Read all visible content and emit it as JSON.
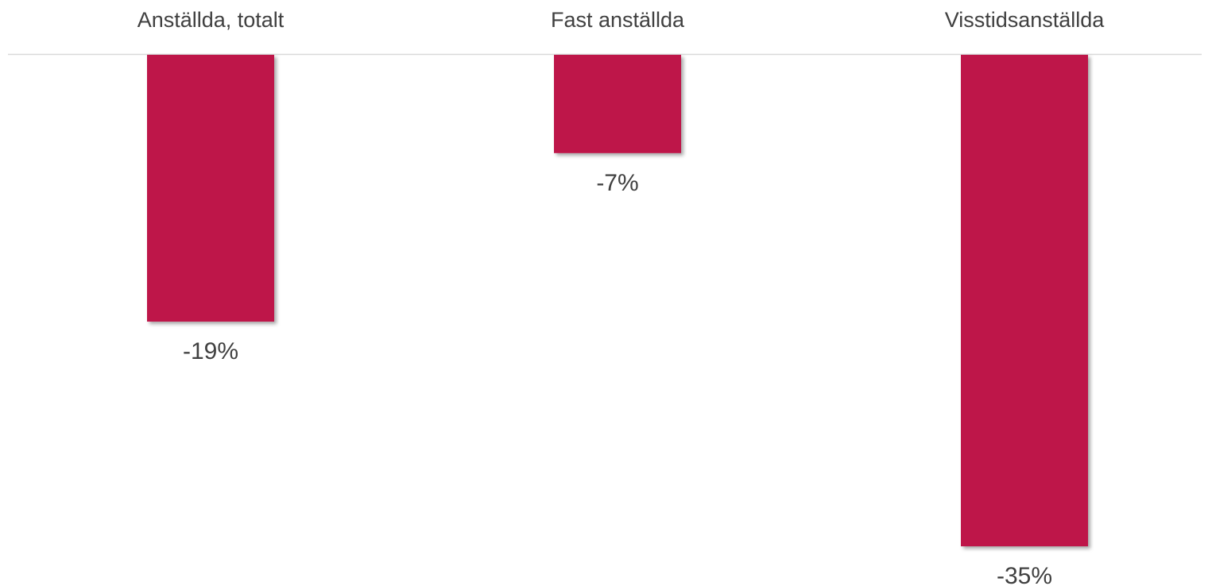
{
  "chart_data": {
    "type": "bar",
    "title": "",
    "xlabel": "",
    "ylabel": "",
    "categories": [
      "Anställda, totalt",
      "Fast anställda",
      "Visstidsanställda"
    ],
    "values": [
      -19,
      -7,
      -35
    ],
    "value_labels": [
      "-19%",
      "-7%",
      "-35%"
    ],
    "ylim": [
      -35,
      0
    ],
    "grid": false,
    "legend": "none",
    "category_axis_position": "top",
    "bar_color": "#BE1348",
    "text_color": "#404040",
    "axis_color": "#D9D9D9"
  }
}
